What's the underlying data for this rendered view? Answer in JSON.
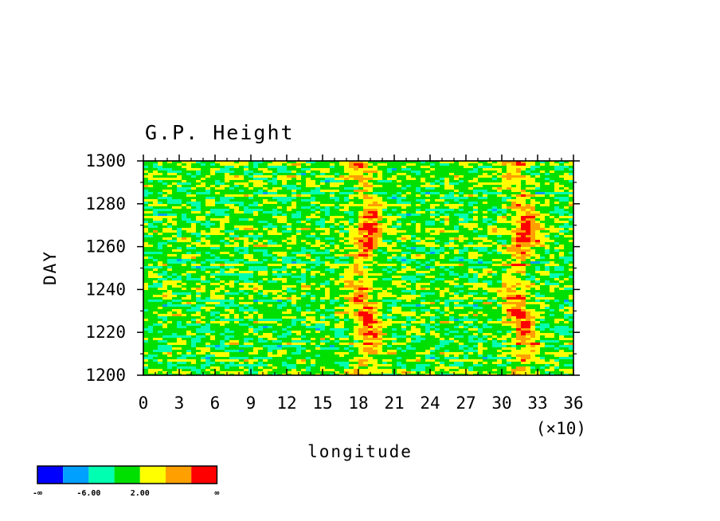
{
  "chart_data": {
    "type": "heatmap",
    "title": "G.P. Height",
    "xlabel": "longitude",
    "ylabel": "DAY",
    "x_multiplier_label": "(×10)",
    "xlim": [
      0,
      36
    ],
    "ylim": [
      1200,
      1300
    ],
    "x_ticks": [
      "0",
      "3",
      "6",
      "9",
      "12",
      "15",
      "18",
      "21",
      "24",
      "27",
      "30",
      "33",
      "36"
    ],
    "y_ticks": [
      "1200",
      "1220",
      "1240",
      "1260",
      "1280",
      "1300"
    ],
    "hovmoller_bands": [
      {
        "center_x": 18.5,
        "description": "positive anomaly band"
      },
      {
        "center_x": 31.5,
        "description": "positive anomaly band"
      }
    ],
    "colorbar": {
      "colors": [
        "#0000ff",
        "#00a0ff",
        "#00ffb0",
        "#00e000",
        "#ffff00",
        "#ffa000",
        "#ff0000"
      ],
      "labels": [
        "-∞",
        "-6.00",
        "2.00",
        "∞"
      ]
    }
  }
}
